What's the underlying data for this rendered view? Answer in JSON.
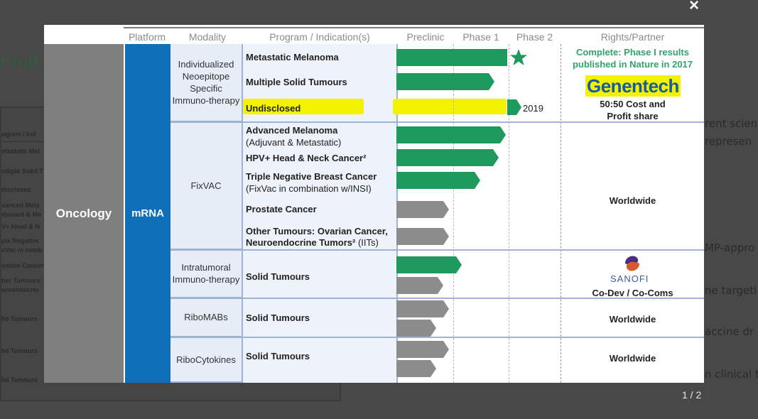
{
  "background": {
    "title_fragment": "f mR",
    "thumb_rows": [
      "ogram / Ind",
      "etastatic Mel",
      "ultiple Solid T",
      "disclosed",
      "vanced Mela",
      "djuvant & Me",
      "V+ Head & N",
      "ple Negative",
      "xVac in comb",
      "ostate Cancer",
      "her Tumours:",
      "uroendocrin",
      "lid Tumours",
      "lid Tumours",
      "lid Tumours"
    ],
    "right_fragments": [
      "rent scien",
      "represen",
      "MP-appro",
      "ne targeti",
      "accine dr",
      "n clinical t"
    ]
  },
  "viewer": {
    "close_label": "×",
    "counter": "1 / 2"
  },
  "slide": {
    "headers": {
      "platform": "Platform",
      "modality": "Modality",
      "program": "Program / Indication(s)",
      "preclinic": "Preclinic",
      "phase1": "Phase 1",
      "phase2": "Phase 2",
      "rights": "Rights/Partner"
    },
    "platform_label": "Oncology",
    "modality_label": "mRNA",
    "groups": [
      {
        "modality": "Individualized Neoepitope Specific Immuno-therapy"
      },
      {
        "modality": "FixVAC"
      },
      {
        "modality": "Intratumoral Immuno-therapy"
      },
      {
        "modality": "RiboMABs"
      },
      {
        "modality": "RiboCytokines"
      }
    ],
    "programs": {
      "p1": "Metastatic Melanoma",
      "p2": "Multiple Solid Tumours",
      "p3": "Undisclosed",
      "p4": "Advanced Melanoma",
      "p4sub": "(Adjuvant & Metastatic)",
      "p5": "HPV+ Head & Neck Cancer²",
      "p6": "Triple Negative Breast Cancer",
      "p6sub": "(FixVac in combination w/INSI)",
      "p7": "Prostate Cancer",
      "p8": "Other Tumours: Ovarian Cancer,",
      "p8b": "Neuroendocrine Tumors² ",
      "p8c": "(IITs)",
      "p9": "Solid Tumours",
      "p10": "Solid Tumours",
      "p11": "Solid Tumours"
    },
    "year_label": "2019",
    "rights": {
      "complete1": "Complete: Phase I results",
      "complete2": "published in Nature in 2017",
      "genentech": "Genentech",
      "cost1": "50:50 Cost and",
      "cost2": "Profit share",
      "worldwide1": "Worldwide",
      "sanofi": "SANOFI",
      "codev": "Co-Dev / Co-Coms",
      "worldwide2": "Worldwide",
      "worldwide3": "Worldwide"
    },
    "colors": {
      "green": "#1e9a5f",
      "gray": "#8c8c8c",
      "blue": "#0f6fb8",
      "highlight": "#f3f300"
    }
  }
}
